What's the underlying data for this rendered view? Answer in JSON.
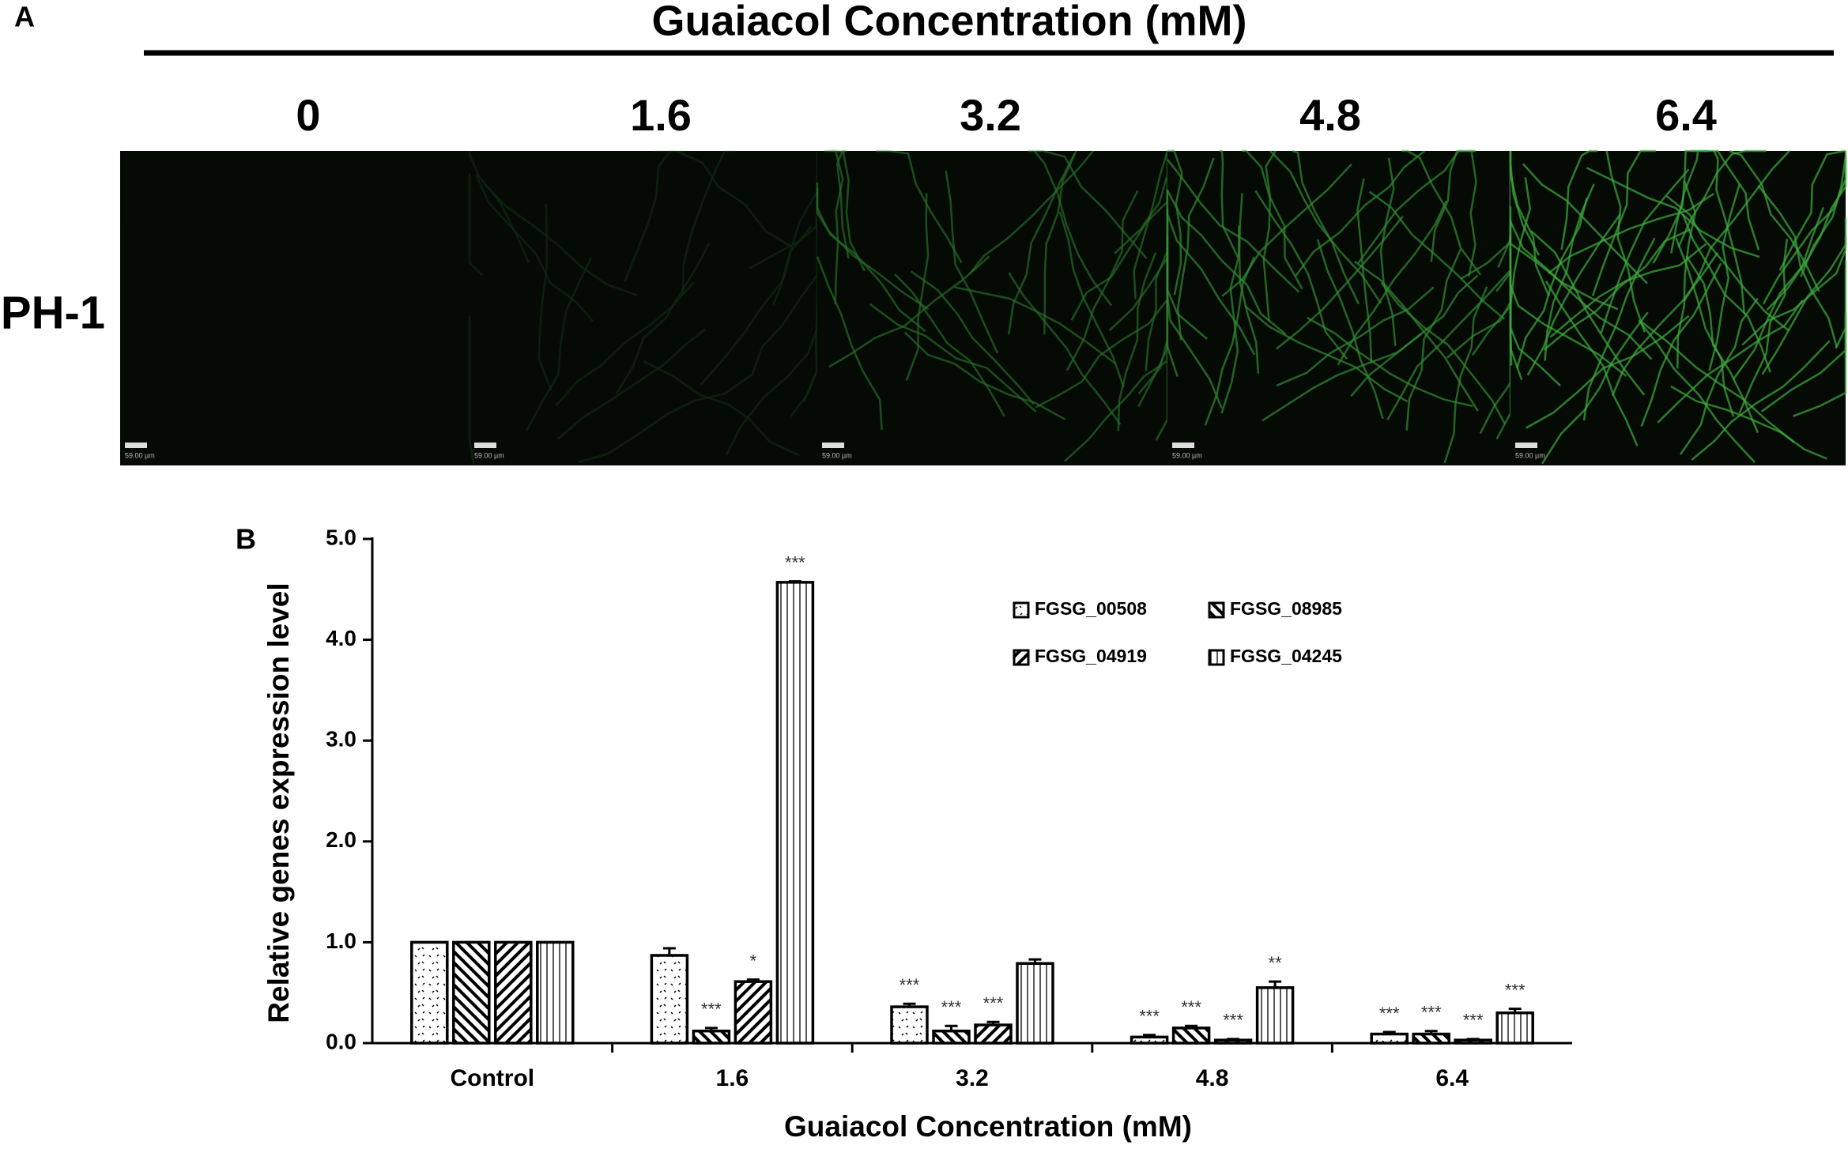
{
  "panel_a": {
    "label": "A",
    "title": "Guaiacol Concentration  (mM)",
    "columns": [
      "0",
      "1.6",
      "3.2",
      "4.8",
      "6.4"
    ],
    "row_label": "PH-1",
    "scale_bar_labels": [
      "59.00 µm",
      "59.00 µm",
      "59.00 µm",
      "59.00 µm",
      "59.00 µm"
    ]
  },
  "chart_data": {
    "type": "bar",
    "panel_label": "B",
    "x_label": "Guaiacol Concentration  (mM)",
    "y_label": "Relative genes expression level",
    "categories": [
      "Control",
      "1.6",
      "3.2",
      "4.8",
      "6.4"
    ],
    "series": [
      {
        "name": "FGSG_00508",
        "color": "#000000",
        "pattern": "dots",
        "values": [
          1.0,
          0.87,
          0.36,
          0.06,
          0.09
        ],
        "errors": [
          0,
          0.07,
          0.03,
          0.02,
          0.02
        ],
        "annotations": [
          null,
          null,
          "***",
          "***",
          "***"
        ]
      },
      {
        "name": "FGSG_08985",
        "color": "#000000",
        "pattern": "back-diagonal",
        "values": [
          1.0,
          0.12,
          0.12,
          0.15,
          0.09
        ],
        "errors": [
          0,
          0.03,
          0.05,
          0.02,
          0.03
        ],
        "annotations": [
          null,
          "***",
          "***",
          "***",
          "***"
        ]
      },
      {
        "name": "FGSG_04919",
        "color": "#000000",
        "pattern": "diagonal",
        "values": [
          1.0,
          0.61,
          0.18,
          0.03,
          0.03
        ],
        "errors": [
          0,
          0.02,
          0.03,
          0.01,
          0.01
        ],
        "annotations": [
          null,
          "*",
          "***",
          "***",
          "***"
        ]
      },
      {
        "name": "FGSG_04245",
        "color": "#000000",
        "pattern": "vertical",
        "values": [
          1.0,
          4.57,
          0.79,
          0.55,
          0.3
        ],
        "errors": [
          0,
          0.01,
          0.04,
          0.06,
          0.04
        ],
        "annotations": [
          null,
          "***",
          null,
          "**",
          "***"
        ]
      }
    ],
    "ylim": [
      0,
      5
    ],
    "yticks": [
      {
        "value": 0,
        "label": "0.0"
      },
      {
        "value": 1,
        "label": "1.0"
      },
      {
        "value": 2,
        "label": "2.0"
      },
      {
        "value": 3,
        "label": "3.0"
      },
      {
        "value": 4,
        "label": "4.0"
      },
      {
        "value": 5,
        "label": "5.0"
      }
    ],
    "legend": "top-right",
    "grid": false
  }
}
